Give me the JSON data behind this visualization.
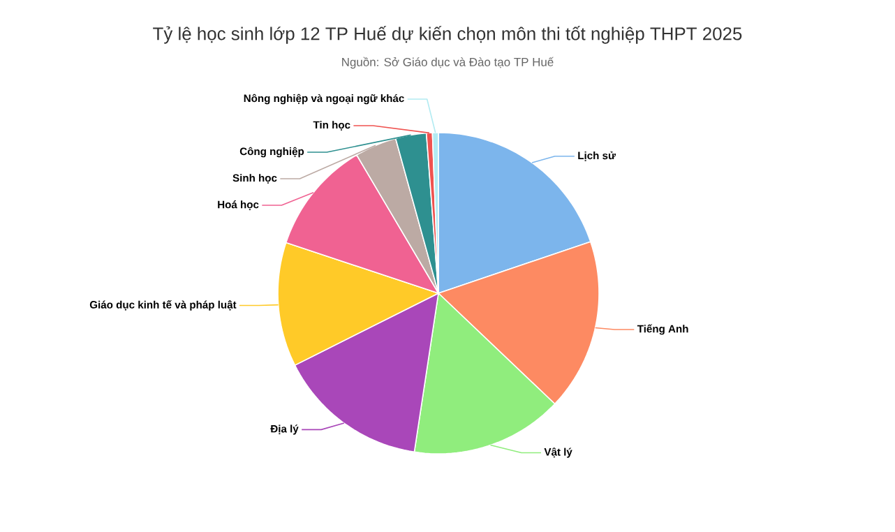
{
  "chart_data": {
    "type": "pie",
    "title": "Tỷ lệ học sinh lớp 12 TP Huế dự kiến chọn môn thi tốt nghiệp THPT 2025",
    "subtitle": "Nguồn: Sở Giáo dục và Đào tạo TP Huế",
    "categories": [
      "Lịch sử",
      "Tiếng Anh",
      "Vật lý",
      "Địa lý",
      "Giáo dục kinh tế và pháp luật",
      "Hoá học",
      "Sinh học",
      "Công nghiệp",
      "Tin học",
      "Nông nghiệp và ngoại ngữ khác"
    ],
    "values": [
      19.8,
      17.3,
      15.3,
      15.2,
      12.5,
      11.4,
      4.2,
      3.1,
      0.6,
      0.6
    ],
    "colors": [
      "#7cb5ec",
      "#fd8a62",
      "#90ed7d",
      "#a947b9",
      "#ffca28",
      "#f06292",
      "#bcaaa4",
      "#2e9090",
      "#ef5350",
      "#b2ebf2"
    ]
  }
}
